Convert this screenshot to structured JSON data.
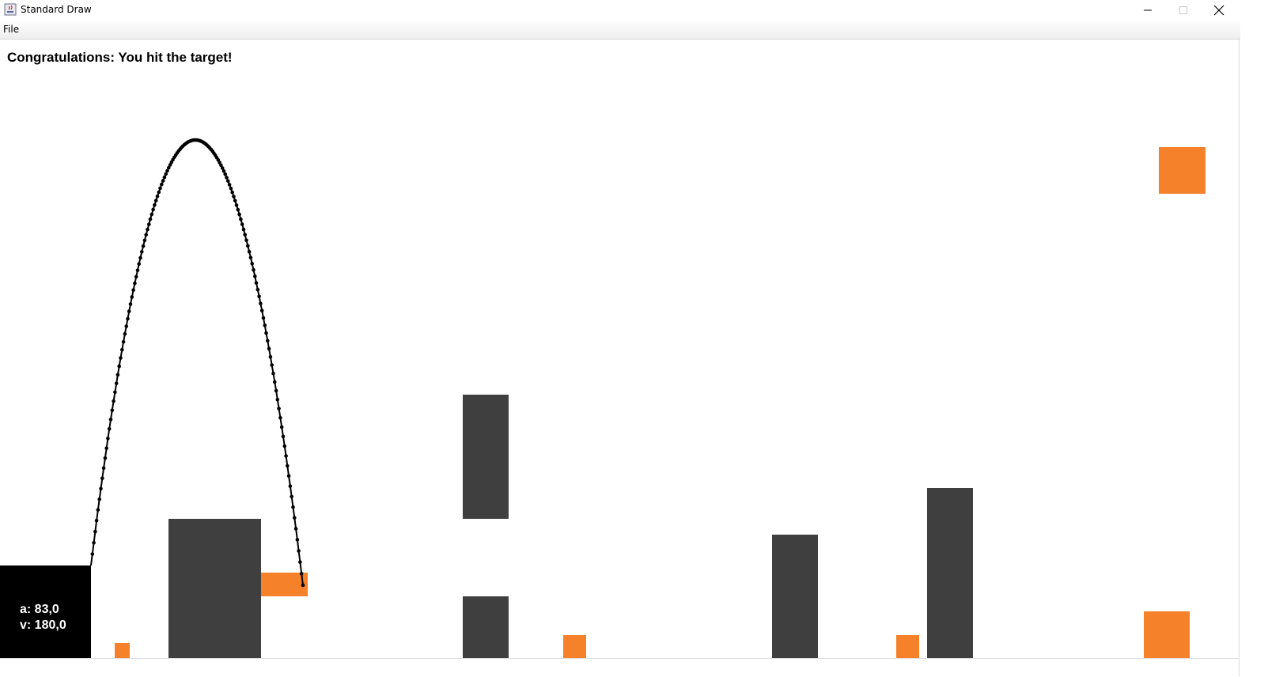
{
  "window": {
    "title": "Standard Draw",
    "icon": "java-cup-icon",
    "controls": [
      "minimize-icon",
      "maximize-icon",
      "close-icon"
    ]
  },
  "menu": {
    "file_label": "File"
  },
  "game": {
    "status_message": "Congratulations: You hit the target!",
    "angle_label": "a: 83,0",
    "velocity_label": "v: 180,0",
    "colors": {
      "obstacle": "#3f3f3f",
      "target": "#f5822a",
      "shooter": "#000000",
      "trajectory": "#000000"
    }
  }
}
